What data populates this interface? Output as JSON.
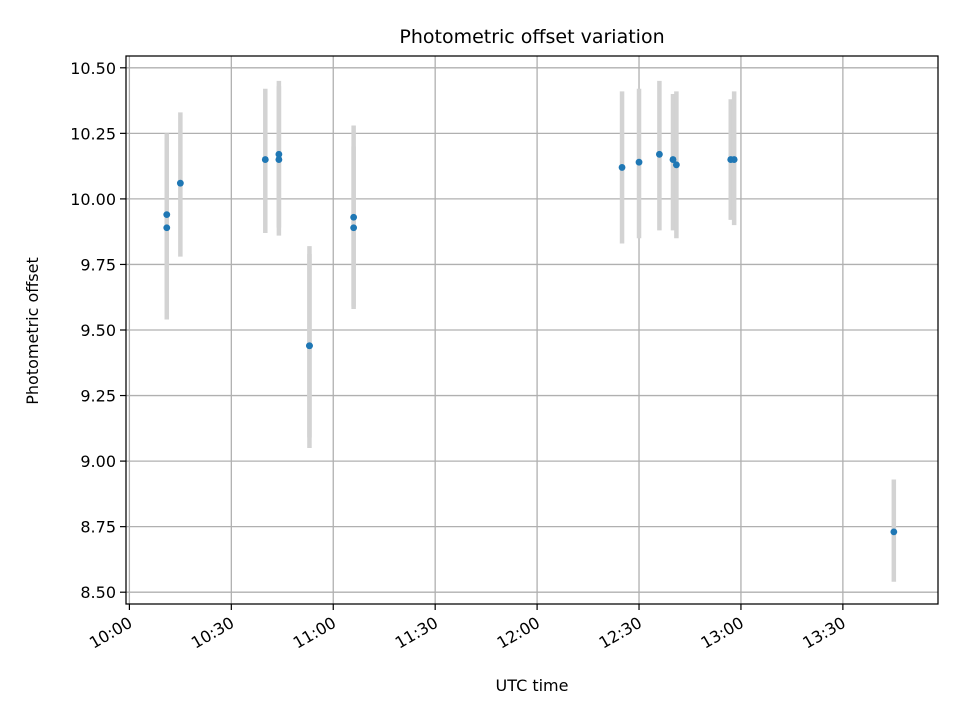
{
  "chart_data": {
    "type": "scatter",
    "title": "Photometric offset variation",
    "xlabel": "UTC time",
    "ylabel": "Photometric offset",
    "x_tick_labels": [
      "10:00",
      "10:30",
      "11:00",
      "11:30",
      "12:00",
      "12:30",
      "13:00",
      "13:30"
    ],
    "y_tick_labels": [
      "8.50",
      "8.75",
      "9.00",
      "9.25",
      "9.50",
      "9.75",
      "10.00",
      "10.25",
      "10.50"
    ],
    "x_ticks": [
      "10:00",
      "10:30",
      "11:00",
      "11:30",
      "12:00",
      "12:30",
      "13:00",
      "13:30"
    ],
    "y_ticks": [
      8.5,
      8.75,
      9.0,
      9.25,
      9.5,
      9.75,
      10.0,
      10.25,
      10.5
    ],
    "xlim": [
      "09:59",
      "13:58"
    ],
    "ylim": [
      8.455,
      10.545
    ],
    "grid": true,
    "marker_color": "#1f77b4",
    "errorbar_color": "#d3d3d3",
    "points": [
      {
        "x": "10:11",
        "y": 9.94,
        "ylow": 9.64,
        "yhigh": 10.25
      },
      {
        "x": "10:11",
        "y": 9.89,
        "ylow": 9.54,
        "yhigh": 10.23
      },
      {
        "x": "10:15",
        "y": 10.06,
        "ylow": 9.78,
        "yhigh": 10.33
      },
      {
        "x": "10:40",
        "y": 10.15,
        "ylow": 9.87,
        "yhigh": 10.42
      },
      {
        "x": "10:44",
        "y": 10.17,
        "ylow": 9.89,
        "yhigh": 10.45
      },
      {
        "x": "10:44",
        "y": 10.15,
        "ylow": 9.86,
        "yhigh": 10.43
      },
      {
        "x": "10:53",
        "y": 9.44,
        "ylow": 9.05,
        "yhigh": 9.82
      },
      {
        "x": "10:53",
        "y": 9.44,
        "ylow": 9.09,
        "yhigh": 9.79
      },
      {
        "x": "11:06",
        "y": 9.93,
        "ylow": 9.58,
        "yhigh": 10.28
      },
      {
        "x": "11:06",
        "y": 9.89,
        "ylow": 9.59,
        "yhigh": 10.2
      },
      {
        "x": "12:25",
        "y": 10.12,
        "ylow": 9.83,
        "yhigh": 10.41
      },
      {
        "x": "12:30",
        "y": 10.14,
        "ylow": 9.85,
        "yhigh": 10.42
      },
      {
        "x": "12:36",
        "y": 10.17,
        "ylow": 9.88,
        "yhigh": 10.45
      },
      {
        "x": "12:40",
        "y": 10.15,
        "ylow": 9.88,
        "yhigh": 10.4
      },
      {
        "x": "12:41",
        "y": 10.13,
        "ylow": 9.85,
        "yhigh": 10.41
      },
      {
        "x": "12:57",
        "y": 10.15,
        "ylow": 9.92,
        "yhigh": 10.38
      },
      {
        "x": "12:58",
        "y": 10.15,
        "ylow": 9.9,
        "yhigh": 10.41
      },
      {
        "x": "13:45",
        "y": 8.73,
        "ylow": 8.54,
        "yhigh": 8.93
      }
    ]
  }
}
